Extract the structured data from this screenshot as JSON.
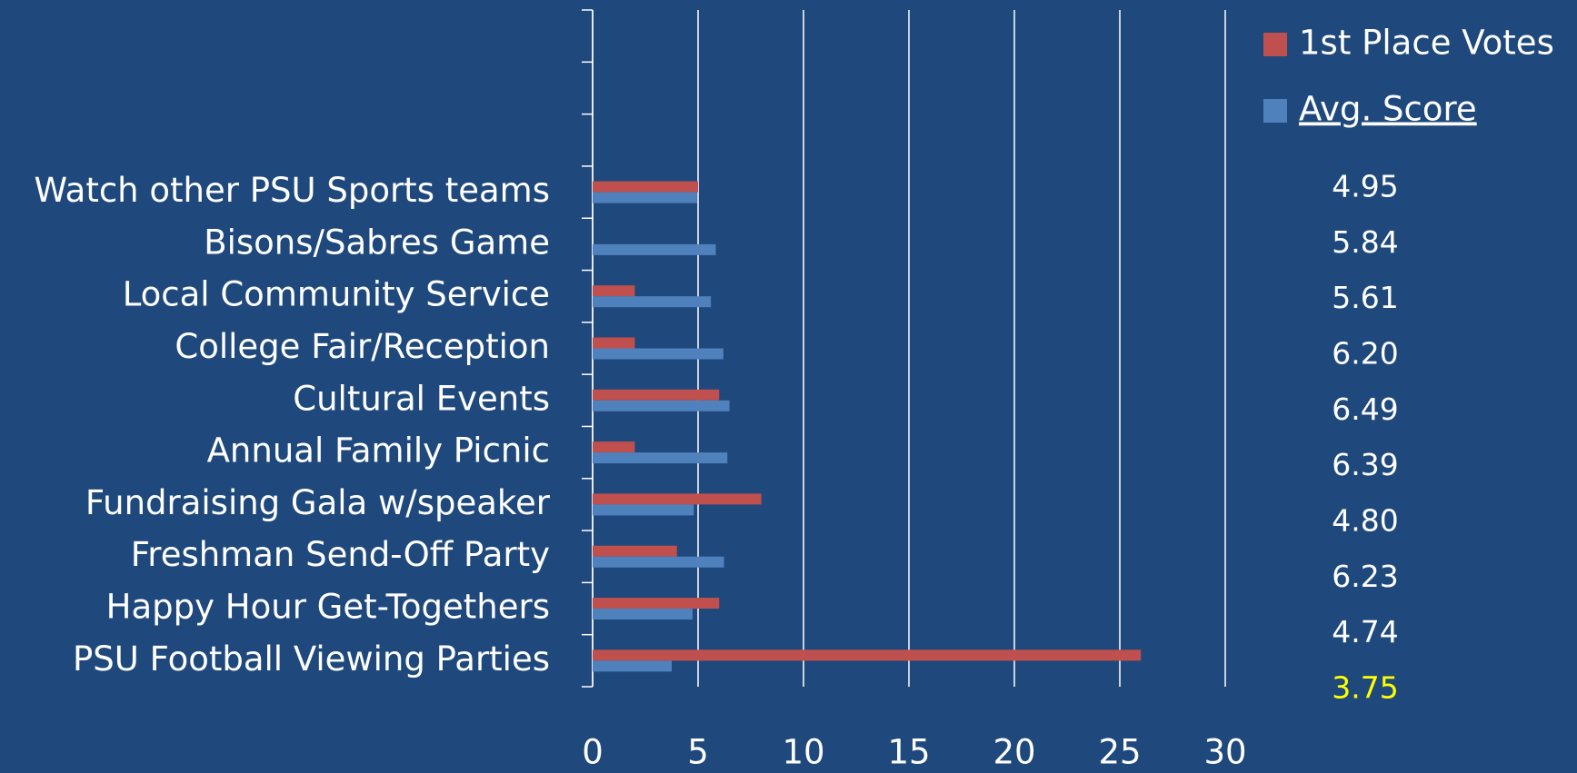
{
  "chart_data": {
    "type": "hbar",
    "categories": [
      null,
      null,
      null,
      "Watch other PSU Sports teams",
      "Bisons/Sabres Game",
      "Local Community Service ",
      "College Fair/Reception",
      "Cultural Events",
      "Annual Family Picnic",
      "Fundraising Gala w/speaker",
      "Freshman Send-Off Party",
      "Happy Hour Get-Togethers",
      "PSU Football Viewing Parties"
    ],
    "series": [
      {
        "name": "1st Place Votes",
        "color": "#c0504d",
        "values": [
          null,
          null,
          null,
          5,
          0,
          2,
          2,
          6,
          2,
          8,
          4,
          6,
          26
        ]
      },
      {
        "name": "Avg. Score",
        "color": "#4f81bd",
        "values": [
          null,
          null,
          null,
          4.95,
          5.84,
          5.61,
          6.2,
          6.49,
          6.39,
          4.8,
          6.23,
          4.74,
          3.75
        ],
        "value_labels": [
          null,
          null,
          null,
          "4.95",
          "5.84",
          "5.61",
          "6.20",
          "6.49",
          "6.39",
          "4.80",
          "6.23",
          "4.74",
          "3.75"
        ],
        "value_label_colors": [
          null,
          null,
          null,
          "#ffffff",
          "#ffffff",
          "#ffffff",
          "#ffffff",
          "#ffffff",
          "#ffffff",
          "#ffffff",
          "#ffffff",
          "#ffffff",
          "#ffff00"
        ]
      }
    ],
    "xlim": [
      0,
      30
    ],
    "xticks": [
      0,
      5,
      10,
      15,
      20,
      25,
      30
    ],
    "grid": true,
    "legend": "top-right"
  }
}
